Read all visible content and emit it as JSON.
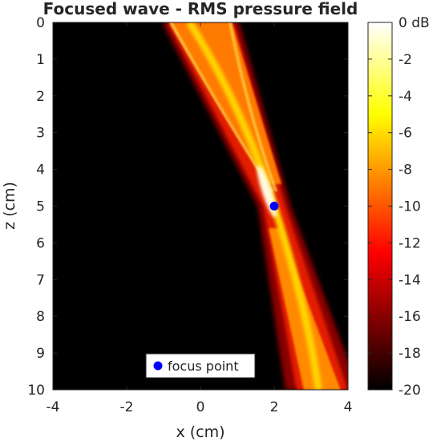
{
  "chart_data": {
    "type": "heatmap",
    "title": "Focused wave - RMS pressure field",
    "xlabel": "x (cm)",
    "ylabel": "z (cm)",
    "xlim": [
      -4,
      4
    ],
    "ylim": [
      0,
      10
    ],
    "y_reversed": true,
    "x_ticks": [
      -4,
      -2,
      0,
      2,
      4
    ],
    "y_ticks": [
      0,
      1,
      2,
      3,
      4,
      5,
      6,
      7,
      8,
      9,
      10
    ],
    "colormap": "hot",
    "colorbar": {
      "min": -20,
      "max": 0,
      "ticks": [
        0,
        -2,
        -4,
        -6,
        -8,
        -10,
        -12,
        -14,
        -16,
        -18,
        -20
      ],
      "tick_labels": [
        "0 dB",
        "-2",
        "-4",
        "-6",
        "-8",
        "-10",
        "-12",
        "-14",
        "-16",
        "-18",
        "-20"
      ]
    },
    "beam": {
      "aperture_x": [
        -0.9,
        0.9
      ],
      "aperture_z": 0,
      "exit_z": 10,
      "exit_x": [
        2.6,
        4.0
      ],
      "center_exit_x": 3.2
    },
    "points": [
      {
        "name": "focus point",
        "x": 2,
        "z": 5,
        "color": "#0000ff"
      }
    ],
    "legend": {
      "position": "bottom-center",
      "entries": [
        "focus point"
      ]
    },
    "grid": false
  }
}
